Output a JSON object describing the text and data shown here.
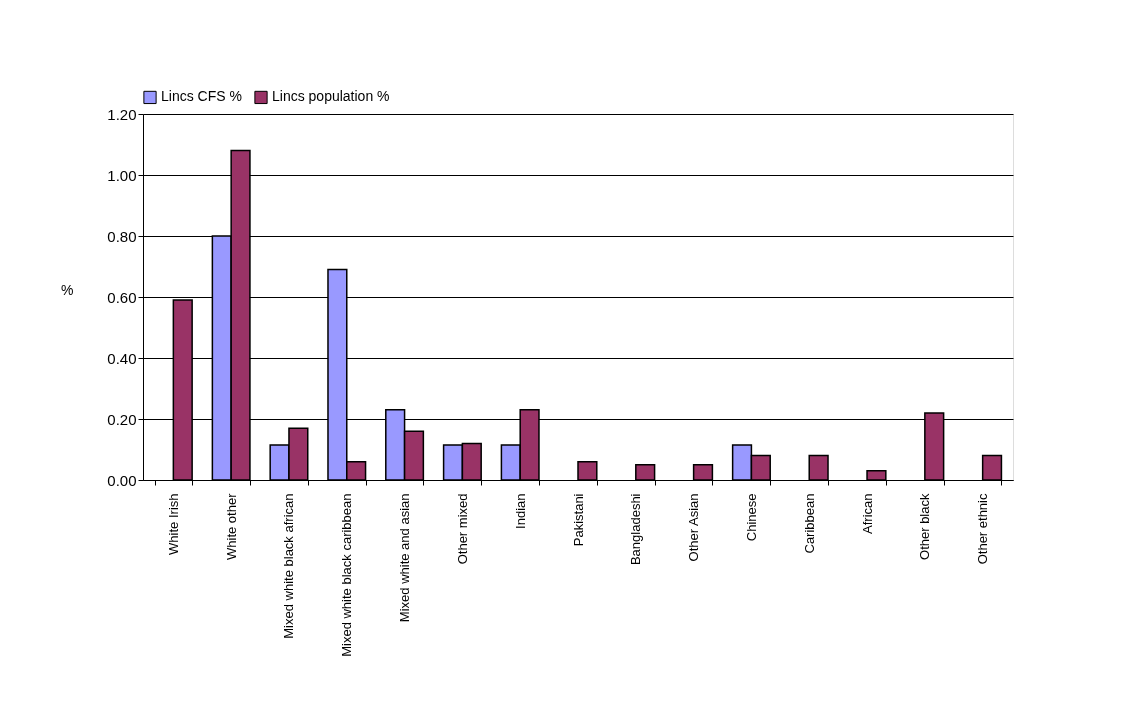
{
  "chart_data": {
    "type": "bar",
    "ylabel": "%",
    "categories": [
      "White Irish",
      "White other",
      "Mixed white black african",
      "Mixed white black caribbean",
      "Mixed white and asian",
      "Other mixed",
      "Indian",
      "Pakistani",
      "Bangladeshi",
      "Other Asian",
      "Chinese",
      "Caribbean",
      "African",
      "Other black",
      "Other ethnic"
    ],
    "series": [
      {
        "name": "Lincs CFS %",
        "color": "#9999ff",
        "values": [
          null,
          0.8,
          0.115,
          0.69,
          0.23,
          0.115,
          0.115,
          null,
          null,
          null,
          0.115,
          null,
          null,
          null,
          null
        ]
      },
      {
        "name": "Lincs population %",
        "color": "#993366",
        "values": [
          0.59,
          1.08,
          0.17,
          0.06,
          0.16,
          0.12,
          0.23,
          0.06,
          0.05,
          0.05,
          0.08,
          0.08,
          0.03,
          0.22,
          0.08
        ]
      }
    ],
    "ylim": [
      0,
      1.2
    ],
    "yticks": [
      {
        "value": 0,
        "label": "0.00"
      },
      {
        "value": 0.2,
        "label": "0.20"
      },
      {
        "value": 0.4,
        "label": "0.40"
      },
      {
        "value": 0.6,
        "label": "0.60"
      },
      {
        "value": 0.8,
        "label": "0.80"
      },
      {
        "value": 1.0,
        "label": "1.00"
      },
      {
        "value": 1.2,
        "label": "1.20"
      }
    ],
    "grid": "y",
    "legend": "top"
  }
}
